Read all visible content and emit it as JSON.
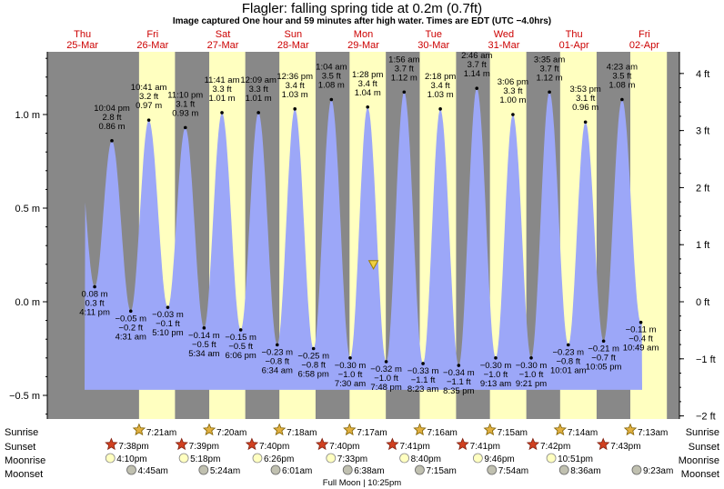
{
  "colors": {
    "night": "#888888",
    "day": "#ffffc0",
    "tide_fill": "#9ca7f8",
    "day_label": "#cc0000",
    "text": "#000000"
  },
  "chart_data": {
    "type": "area",
    "title": "Flagler: falling  spring tide at 0.2m (0.7ft)",
    "subtitle": "Image captured One hour and 59 minutes after high water. Times are EDT (UTC −4.0hrs)",
    "y_unit_left": "m",
    "y_unit_right": "ft",
    "ylim_m": [
      -0.6,
      1.3
    ],
    "left_ticks": [
      {
        "v": 1.0,
        "label": "1.0 m"
      },
      {
        "v": 0.5,
        "label": "0.5 m"
      },
      {
        "v": 0.0,
        "label": "0.0 m"
      },
      {
        "v": -0.5,
        "label": "−0.5 m"
      }
    ],
    "right_ticks": [
      {
        "v": 4,
        "label": "4 ft"
      },
      {
        "v": 3,
        "label": "3 ft"
      },
      {
        "v": 2,
        "label": "2 ft"
      },
      {
        "v": 1,
        "label": "1 ft"
      },
      {
        "v": 0,
        "label": "0 ft"
      },
      {
        "v": -1,
        "label": "−1 ft"
      },
      {
        "v": -2,
        "label": "−2 ft"
      }
    ],
    "x_start": "25-Mar 00:00",
    "x_end": "02-Apr 24:00",
    "days": [
      {
        "dow": "Thu",
        "date": "25-Mar",
        "sunrise": "",
        "sunset": "",
        "moonrise": "",
        "moonset": ""
      },
      {
        "dow": "Fri",
        "date": "26-Mar",
        "sunrise": "7:21am",
        "sunset": "7:38pm",
        "moonrise": "4:10pm",
        "moonset": "4:45am"
      },
      {
        "dow": "Sat",
        "date": "27-Mar",
        "sunrise": "7:20am",
        "sunset": "7:39pm",
        "moonrise": "5:18pm",
        "moonset": "5:24am"
      },
      {
        "dow": "Sun",
        "date": "28-Mar",
        "sunrise": "7:18am",
        "sunset": "7:40pm",
        "moonrise": "6:26pm",
        "moonset": "6:01am"
      },
      {
        "dow": "Mon",
        "date": "29-Mar",
        "sunrise": "7:17am",
        "sunset": "7:40pm",
        "moonrise": "7:33pm",
        "moonset": "6:38am"
      },
      {
        "dow": "Tue",
        "date": "30-Mar",
        "sunrise": "7:16am",
        "sunset": "7:41pm",
        "moonrise": "8:40pm",
        "moonset": "7:15am"
      },
      {
        "dow": "Wed",
        "date": "31-Mar",
        "sunrise": "7:15am",
        "sunset": "7:41pm",
        "moonrise": "9:46pm",
        "moonset": "7:54am"
      },
      {
        "dow": "Thu",
        "date": "01-Apr",
        "sunrise": "7:14am",
        "sunset": "7:42pm",
        "moonrise": "10:51pm",
        "moonset": "8:36am"
      },
      {
        "dow": "Fri",
        "date": "02-Apr",
        "sunrise": "7:13am",
        "sunset": "7:43pm",
        "moonrise": "",
        "moonset": "9:23am"
      }
    ],
    "tide_extrema": [
      {
        "type": "low",
        "day": 0,
        "time": "4:11 pm",
        "m": 0.08,
        "ft": "0.3 ft",
        "m_label": "0.08 m"
      },
      {
        "type": "high",
        "day": 0,
        "time": "10:04 pm",
        "m": 0.86,
        "ft": "2.8 ft",
        "m_label": "0.86 m"
      },
      {
        "type": "low",
        "day": 1,
        "time": "4:31 am",
        "m": -0.05,
        "ft": "−0.2 ft",
        "m_label": "−0.05 m"
      },
      {
        "type": "high",
        "day": 1,
        "time": "10:41 am",
        "m": 0.97,
        "ft": "3.2 ft",
        "m_label": "0.97 m"
      },
      {
        "type": "low",
        "day": 1,
        "time": "5:10 pm",
        "m": -0.03,
        "ft": "−0.1 ft",
        "m_label": "−0.03 m"
      },
      {
        "type": "high",
        "day": 1,
        "time": "11:10 pm",
        "m": 0.93,
        "ft": "3.1 ft",
        "m_label": "0.93 m"
      },
      {
        "type": "low",
        "day": 2,
        "time": "5:34 am",
        "m": -0.14,
        "ft": "−0.5 ft",
        "m_label": "−0.14 m"
      },
      {
        "type": "high",
        "day": 2,
        "time": "11:41 am",
        "m": 1.01,
        "ft": "3.3 ft",
        "m_label": "1.01 m"
      },
      {
        "type": "low",
        "day": 2,
        "time": "6:06 pm",
        "m": -0.15,
        "ft": "−0.5 ft",
        "m_label": "−0.15 m"
      },
      {
        "type": "high",
        "day": 3,
        "time": "12:09 am",
        "m": 1.01,
        "ft": "3.3 ft",
        "m_label": "1.01 m"
      },
      {
        "type": "low",
        "day": 3,
        "time": "6:34 am",
        "m": -0.23,
        "ft": "−0.8 ft",
        "m_label": "−0.23 m"
      },
      {
        "type": "high",
        "day": 3,
        "time": "12:36 pm",
        "m": 1.03,
        "ft": "3.4 ft",
        "m_label": "1.03 m"
      },
      {
        "type": "low",
        "day": 3,
        "time": "6:58 pm",
        "m": -0.25,
        "ft": "−0.8 ft",
        "m_label": "−0.25 m"
      },
      {
        "type": "high",
        "day": 4,
        "time": "1:04 am",
        "m": 1.08,
        "ft": "3.5 ft",
        "m_label": "1.08 m"
      },
      {
        "type": "low",
        "day": 4,
        "time": "7:30 am",
        "m": -0.3,
        "ft": "−1.0 ft",
        "m_label": "−0.30 m"
      },
      {
        "type": "high",
        "day": 4,
        "time": "1:28 pm",
        "m": 1.04,
        "ft": "3.4 ft",
        "m_label": "1.04 m"
      },
      {
        "type": "low",
        "day": 4,
        "time": "7:48 pm",
        "m": -0.32,
        "ft": "−1.0 ft",
        "m_label": "−0.32 m"
      },
      {
        "type": "high",
        "day": 5,
        "time": "1:56 am",
        "m": 1.12,
        "ft": "3.7 ft",
        "m_label": "1.12 m"
      },
      {
        "type": "low",
        "day": 5,
        "time": "8:23 am",
        "m": -0.33,
        "ft": "−1.1 ft",
        "m_label": "−0.33 m"
      },
      {
        "type": "high",
        "day": 5,
        "time": "2:18 pm",
        "m": 1.03,
        "ft": "3.4 ft",
        "m_label": "1.03 m"
      },
      {
        "type": "low",
        "day": 5,
        "time": "8:35 pm",
        "m": -0.34,
        "ft": "−1.1 ft",
        "m_label": "−0.34 m"
      },
      {
        "type": "high",
        "day": 6,
        "time": "2:46 am",
        "m": 1.14,
        "ft": "3.7 ft",
        "m_label": "1.14 m"
      },
      {
        "type": "low",
        "day": 6,
        "time": "9:13 am",
        "m": -0.3,
        "ft": "−1.0 ft",
        "m_label": "−0.30 m"
      },
      {
        "type": "high",
        "day": 6,
        "time": "3:06 pm",
        "m": 1.0,
        "ft": "3.3 ft",
        "m_label": "1.00 m"
      },
      {
        "type": "low",
        "day": 6,
        "time": "9:21 pm",
        "m": -0.3,
        "ft": "−1.0 ft",
        "m_label": "−0.30 m"
      },
      {
        "type": "high",
        "day": 7,
        "time": "3:35 am",
        "m": 1.12,
        "ft": "3.7 ft",
        "m_label": "1.12 m"
      },
      {
        "type": "low",
        "day": 7,
        "time": "10:01 am",
        "m": -0.23,
        "ft": "−0.8 ft",
        "m_label": "−0.23 m"
      },
      {
        "type": "high",
        "day": 7,
        "time": "3:53 pm",
        "m": 0.96,
        "ft": "3.1 ft",
        "m_label": "0.96 m"
      },
      {
        "type": "low",
        "day": 7,
        "time": "10:05 pm",
        "m": -0.21,
        "ft": "−0.7 ft",
        "m_label": "−0.21 m"
      },
      {
        "type": "high",
        "day": 8,
        "time": "4:23 am",
        "m": 1.08,
        "ft": "3.5 ft",
        "m_label": "1.08 m"
      },
      {
        "type": "low",
        "day": 8,
        "time": "10:49 am",
        "m": -0.11,
        "ft": "−0.4 ft",
        "m_label": "−0.11 m"
      }
    ],
    "current": {
      "day": 4,
      "time": "3:27 pm",
      "m": 0.2
    },
    "row_labels": {
      "sunrise": "Sunrise",
      "sunset": "Sunset",
      "moonrise": "Moonrise",
      "moonset": "Moonset"
    },
    "moon_phase": {
      "label": "Full Moon | 10:25pm",
      "day": 3,
      "time": "10:25pm"
    }
  }
}
